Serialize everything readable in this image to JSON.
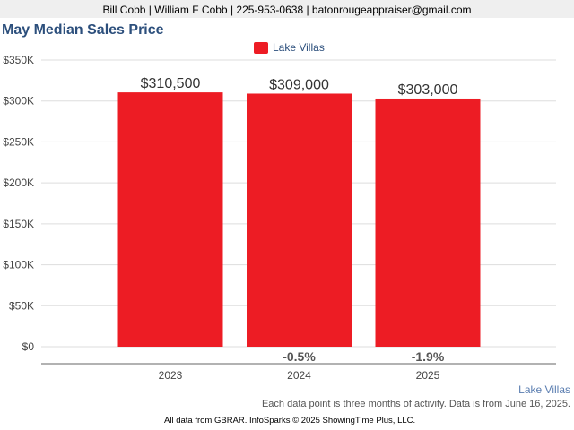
{
  "header": {
    "contact": "Bill Cobb | William F Cobb | 225-953-0638 | batonrougeappraiser@gmail.com"
  },
  "footer": {
    "source_label": "Lake Villas",
    "note": "Each data point is three months of activity. Data is from June 16, 2025.",
    "credit": "All data from GBRAR. InfoSparks © 2025 ShowingTime Plus, LLC."
  },
  "chart_data": {
    "type": "bar",
    "title": "May Median Sales Price",
    "xlabel": "",
    "ylabel": "",
    "categories": [
      "2023",
      "2024",
      "2025"
    ],
    "series": [
      {
        "name": "Lake Villas",
        "color": "#ed1c24",
        "values": [
          310500,
          309000,
          303000
        ],
        "value_labels": [
          "$310,500",
          "$309,000",
          "$303,000"
        ]
      }
    ],
    "changes": [
      "",
      "-0.5%",
      "-1.9%"
    ],
    "ylim": [
      0,
      350000
    ],
    "yticks": [
      0,
      50000,
      100000,
      150000,
      200000,
      250000,
      300000,
      350000
    ],
    "ytick_labels": [
      "$0",
      "$50K",
      "$100K",
      "$150K",
      "$200K",
      "$250K",
      "$300K",
      "$350K"
    ],
    "grid": true,
    "legend_position": "top-center"
  }
}
